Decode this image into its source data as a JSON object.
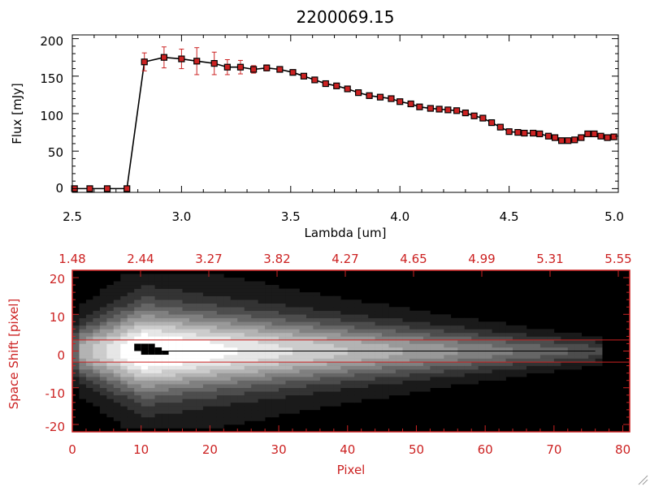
{
  "chart_data": [
    {
      "type": "line",
      "title": "2200069.15",
      "xlabel": "Lambda [um]",
      "ylabel": "Flux [mJy]",
      "xlim": [
        2.5,
        5.0
      ],
      "ylim": [
        -5,
        205
      ],
      "x_ticks": [
        "2.5",
        "3.0",
        "3.5",
        "4.0",
        "4.5",
        "5.0"
      ],
      "y_ticks": [
        "0",
        "50",
        "100",
        "150",
        "200"
      ],
      "line_color": "#000000",
      "marker_color": "#cc2222",
      "errorbar_color": "#cc2222",
      "series": [
        {
          "x": [
            2.51,
            2.58,
            2.66,
            2.75,
            2.83,
            2.92,
            3.0,
            3.07,
            3.15,
            3.21,
            3.27,
            3.33,
            3.39,
            3.45,
            3.51,
            3.56,
            3.61,
            3.66,
            3.71,
            3.76,
            3.81,
            3.86,
            3.91,
            3.96,
            4.0,
            4.05,
            4.09,
            4.14,
            4.18,
            4.22,
            4.26,
            4.3,
            4.34,
            4.38,
            4.42,
            4.46,
            4.5,
            4.54,
            4.57,
            4.61,
            4.64,
            4.68,
            4.71,
            4.74,
            4.77,
            4.8,
            4.83,
            4.86,
            4.89,
            4.92,
            4.95,
            4.98
          ],
          "y": [
            0,
            0,
            0,
            0,
            169,
            175,
            173,
            170,
            167,
            162,
            162,
            159,
            161,
            159,
            155,
            150,
            145,
            140,
            137,
            133,
            128,
            124,
            122,
            120,
            116,
            113,
            109,
            107,
            106,
            105,
            104,
            101,
            97,
            94,
            88,
            82,
            76,
            75,
            74,
            74,
            73,
            70,
            68,
            64,
            64,
            65,
            68,
            73,
            73,
            70,
            68,
            69
          ],
          "yerr": [
            0,
            0,
            0,
            0,
            12,
            14,
            13,
            18,
            15,
            10,
            9,
            5,
            4,
            3,
            2,
            2,
            2,
            2,
            2,
            2,
            2,
            2,
            2,
            2,
            2,
            2,
            2,
            2,
            2,
            2,
            2,
            2,
            2,
            2,
            2,
            2,
            2,
            2,
            2,
            2,
            2,
            2,
            2,
            2,
            2,
            2,
            2,
            2,
            2,
            2,
            2,
            2
          ]
        }
      ]
    },
    {
      "type": "heatmap",
      "xlabel": "Pixel",
      "ylabel": "Space Shift [pixel]",
      "xlim": [
        0,
        81
      ],
      "ylim": [
        -22,
        22
      ],
      "x_ticks": [
        "0",
        "10",
        "20",
        "30",
        "40",
        "50",
        "60",
        "70",
        "80"
      ],
      "y_ticks": [
        "-20",
        "-10",
        "0",
        "10",
        "20"
      ],
      "top_ticks": [
        "1.48",
        "2.44",
        "3.27",
        "3.82",
        "4.27",
        "4.65",
        "4.99",
        "5.31",
        "5.55"
      ],
      "axis_color": "#cc2222",
      "colormap": "grayscale",
      "aperture_lines": [
        3,
        -3
      ],
      "center_line": 0
    }
  ]
}
